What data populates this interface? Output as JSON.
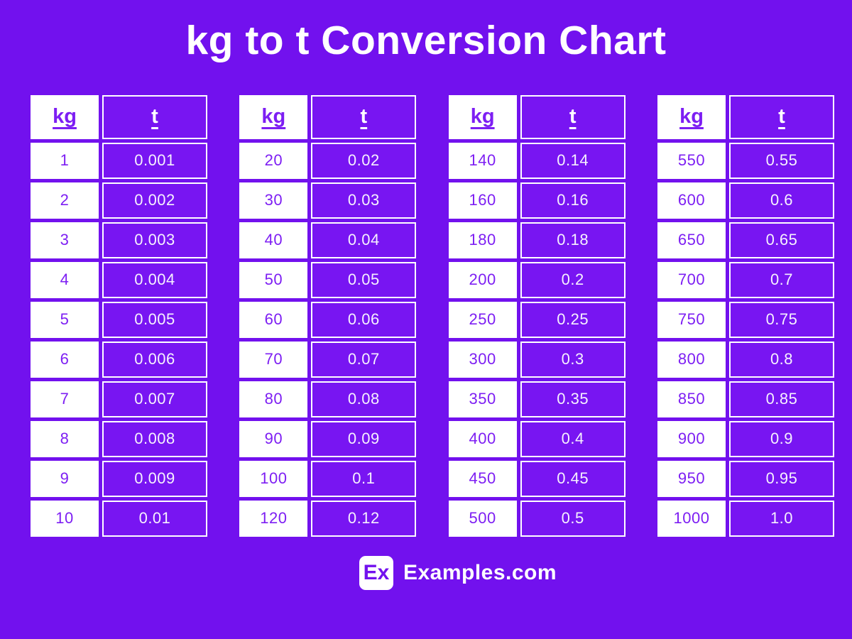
{
  "title": "kg to t Conversion Chart",
  "footer": {
    "logo_text": "Ex",
    "site_name": "Examples.com"
  },
  "colors": {
    "background": "#7211EE",
    "table_cell_purple": "#7815F2",
    "kg_text_purple": "#7D1EF3",
    "t_value_text": "#F6F1FE",
    "white": "#FFFFFF"
  },
  "chart_data": {
    "type": "table",
    "title": "kg to t Conversion Chart",
    "columns": [
      "kg",
      "t"
    ],
    "tables": [
      {
        "headers": [
          "kg",
          "t"
        ],
        "rows": [
          [
            "1",
            "0.001"
          ],
          [
            "2",
            "0.002"
          ],
          [
            "3",
            "0.003"
          ],
          [
            "4",
            "0.004"
          ],
          [
            "5",
            "0.005"
          ],
          [
            "6",
            "0.006"
          ],
          [
            "7",
            "0.007"
          ],
          [
            "8",
            "0.008"
          ],
          [
            "9",
            "0.009"
          ],
          [
            "10",
            "0.01"
          ]
        ]
      },
      {
        "headers": [
          "kg",
          "t"
        ],
        "rows": [
          [
            "20",
            "0.02"
          ],
          [
            "30",
            "0.03"
          ],
          [
            "40",
            "0.04"
          ],
          [
            "50",
            "0.05"
          ],
          [
            "60",
            "0.06"
          ],
          [
            "70",
            "0.07"
          ],
          [
            "80",
            "0.08"
          ],
          [
            "90",
            "0.09"
          ],
          [
            "100",
            "0.1"
          ],
          [
            "120",
            "0.12"
          ]
        ]
      },
      {
        "headers": [
          "kg",
          "t"
        ],
        "rows": [
          [
            "140",
            "0.14"
          ],
          [
            "160",
            "0.16"
          ],
          [
            "180",
            "0.18"
          ],
          [
            "200",
            "0.2"
          ],
          [
            "250",
            "0.25"
          ],
          [
            "300",
            "0.3"
          ],
          [
            "350",
            "0.35"
          ],
          [
            "400",
            "0.4"
          ],
          [
            "450",
            "0.45"
          ],
          [
            "500",
            "0.5"
          ]
        ]
      },
      {
        "headers": [
          "kg",
          "t"
        ],
        "rows": [
          [
            "550",
            "0.55"
          ],
          [
            "600",
            "0.6"
          ],
          [
            "650",
            "0.65"
          ],
          [
            "700",
            "0.7"
          ],
          [
            "750",
            "0.75"
          ],
          [
            "800",
            "0.8"
          ],
          [
            "850",
            "0.85"
          ],
          [
            "900",
            "0.9"
          ],
          [
            "950",
            "0.95"
          ],
          [
            "1000",
            "1.0"
          ]
        ]
      }
    ]
  }
}
